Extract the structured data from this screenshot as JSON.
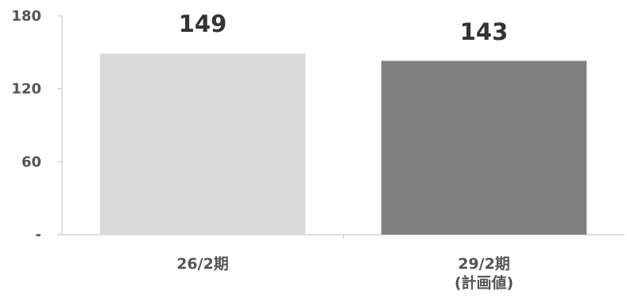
{
  "chart_data": {
    "type": "bar",
    "categories": [
      [
        "26/2期"
      ],
      [
        "29/2期",
        "(計画値)"
      ]
    ],
    "values": [
      149,
      143
    ],
    "data_labels": [
      "149",
      "143"
    ],
    "bar_colors": [
      "#d9d9d9",
      "#7f7f7f"
    ],
    "yticks": [
      {
        "value": 0,
        "label": "-"
      },
      {
        "value": 60,
        "label": "60"
      },
      {
        "value": 120,
        "label": "120"
      },
      {
        "value": 180,
        "label": "180"
      }
    ],
    "ylim": [
      0,
      180
    ],
    "grid": false,
    "legend": "none",
    "axis_color": "#bfbfbf",
    "tick_text_color": "#555555",
    "data_label_color": "#333333"
  }
}
